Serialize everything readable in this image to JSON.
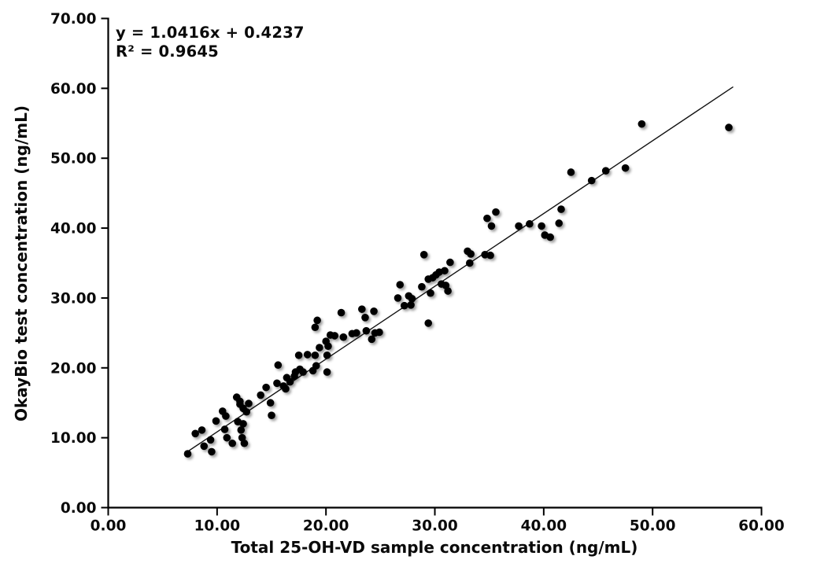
{
  "chart_data": {
    "type": "scatter",
    "title": "",
    "equation": "y = 1.0416x + 0.4237",
    "r_squared": "R² = 0.9645",
    "xlabel": "Total 25-OH-VD sample concentration (ng/mL)",
    "ylabel": "OkayBio test concentration (ng/mL)",
    "xlim": [
      0,
      60
    ],
    "ylim": [
      0,
      70
    ],
    "grid": false,
    "legend_position": "none",
    "marker_color": "#030303",
    "trendline_color": "#111111",
    "axis_color": "#000000",
    "background_color": "#ffffff",
    "xtick_labels": [
      "0.00",
      "10.00",
      "20.00",
      "30.00",
      "40.00",
      "50.00",
      "60.00"
    ],
    "xtick_values": [
      0,
      10,
      20,
      30,
      40,
      50,
      60
    ],
    "ytick_labels": [
      "0.00",
      "10.00",
      "20.00",
      "30.00",
      "40.00",
      "50.00",
      "60.00",
      "70.00"
    ],
    "ytick_values": [
      0,
      10,
      20,
      30,
      40,
      50,
      60,
      70
    ],
    "trendline": {
      "slope": 1.0416,
      "intercept": 0.4237,
      "x_start": 7.2,
      "x_end": 57.4
    },
    "points": [
      [
        7.3,
        7.7
      ],
      [
        8.0,
        10.6
      ],
      [
        8.6,
        11.1
      ],
      [
        8.8,
        8.8
      ],
      [
        9.4,
        9.7
      ],
      [
        9.5,
        8.0
      ],
      [
        9.9,
        12.4
      ],
      [
        10.5,
        13.8
      ],
      [
        10.8,
        13.1
      ],
      [
        10.7,
        11.2
      ],
      [
        10.9,
        10.0
      ],
      [
        11.4,
        9.2
      ],
      [
        11.9,
        12.3
      ],
      [
        12.4,
        12.0
      ],
      [
        12.2,
        11.1
      ],
      [
        12.3,
        10.0
      ],
      [
        12.5,
        9.2
      ],
      [
        11.8,
        15.8
      ],
      [
        12.1,
        15.2
      ],
      [
        12.1,
        14.8
      ],
      [
        12.4,
        14.2
      ],
      [
        12.7,
        13.7
      ],
      [
        12.9,
        14.9
      ],
      [
        14.0,
        16.1
      ],
      [
        14.5,
        17.2
      ],
      [
        14.9,
        15.0
      ],
      [
        15.0,
        13.2
      ],
      [
        15.5,
        17.8
      ],
      [
        15.6,
        20.4
      ],
      [
        16.1,
        17.4
      ],
      [
        16.3,
        17.0
      ],
      [
        16.4,
        18.6
      ],
      [
        16.7,
        18.0
      ],
      [
        17.1,
        18.8
      ],
      [
        17.2,
        19.4
      ],
      [
        17.6,
        19.8
      ],
      [
        17.9,
        19.4
      ],
      [
        17.5,
        21.8
      ],
      [
        18.3,
        21.9
      ],
      [
        19.0,
        21.8
      ],
      [
        19.1,
        20.3
      ],
      [
        18.8,
        19.6
      ],
      [
        19.4,
        22.9
      ],
      [
        19.0,
        25.8
      ],
      [
        19.2,
        26.8
      ],
      [
        20.0,
        23.8
      ],
      [
        20.1,
        21.8
      ],
      [
        20.2,
        23.1
      ],
      [
        20.1,
        19.4
      ],
      [
        20.4,
        24.7
      ],
      [
        20.8,
        24.6
      ],
      [
        21.4,
        27.9
      ],
      [
        21.6,
        24.4
      ],
      [
        22.4,
        24.9
      ],
      [
        22.8,
        25.0
      ],
      [
        23.3,
        28.4
      ],
      [
        23.6,
        27.2
      ],
      [
        23.7,
        25.3
      ],
      [
        24.2,
        24.1
      ],
      [
        24.4,
        28.1
      ],
      [
        24.5,
        25.0
      ],
      [
        24.9,
        25.1
      ],
      [
        26.8,
        31.9
      ],
      [
        26.6,
        30.0
      ],
      [
        27.2,
        28.9
      ],
      [
        27.6,
        30.3
      ],
      [
        27.8,
        29.0
      ],
      [
        27.9,
        29.9
      ],
      [
        28.8,
        31.6
      ],
      [
        29.0,
        36.2
      ],
      [
        29.4,
        32.7
      ],
      [
        29.4,
        26.4
      ],
      [
        29.6,
        30.7
      ],
      [
        29.8,
        32.9
      ],
      [
        30.1,
        33.3
      ],
      [
        30.4,
        33.7
      ],
      [
        30.6,
        32.0
      ],
      [
        30.9,
        33.9
      ],
      [
        31.0,
        31.8
      ],
      [
        31.2,
        31.0
      ],
      [
        31.4,
        35.1
      ],
      [
        33.0,
        36.7
      ],
      [
        33.3,
        36.3
      ],
      [
        33.2,
        35.0
      ],
      [
        34.6,
        36.2
      ],
      [
        35.1,
        36.1
      ],
      [
        34.8,
        41.4
      ],
      [
        35.6,
        42.3
      ],
      [
        35.2,
        40.3
      ],
      [
        37.7,
        40.3
      ],
      [
        38.7,
        40.6
      ],
      [
        39.8,
        40.3
      ],
      [
        40.1,
        39.0
      ],
      [
        40.6,
        38.7
      ],
      [
        41.6,
        42.7
      ],
      [
        41.4,
        40.7
      ],
      [
        42.5,
        48.0
      ],
      [
        44.4,
        46.8
      ],
      [
        45.7,
        48.2
      ],
      [
        47.5,
        48.6
      ],
      [
        49.0,
        54.9
      ],
      [
        57.0,
        54.4
      ]
    ]
  }
}
